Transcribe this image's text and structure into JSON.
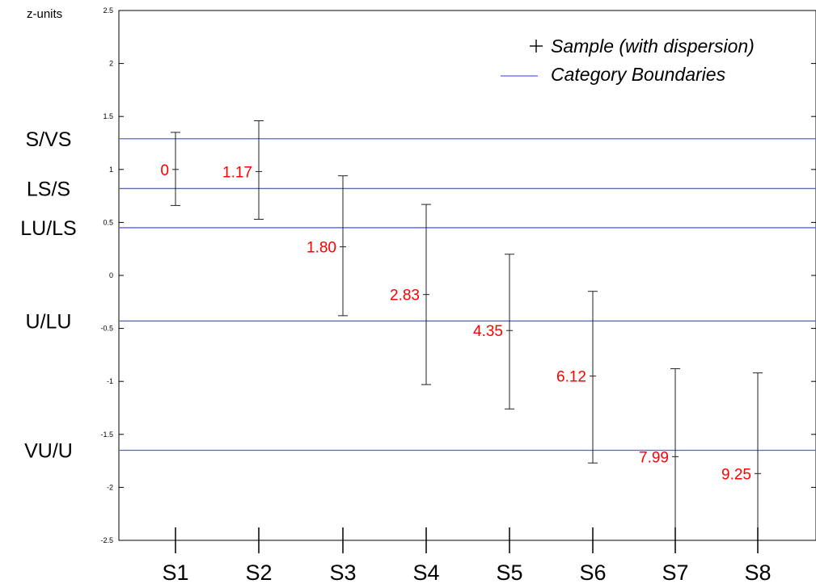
{
  "chart_data": {
    "type": "errorbar",
    "ylabel": "z-units",
    "ylim": [
      -2.5,
      2.5
    ],
    "yticks": [
      {
        "value": 2.5,
        "label": "2.5"
      },
      {
        "value": 2,
        "label": "2"
      },
      {
        "value": 1.5,
        "label": "1.5"
      },
      {
        "value": 1,
        "label": "1"
      },
      {
        "value": 0.5,
        "label": "0.5"
      },
      {
        "value": 0,
        "label": "0"
      },
      {
        "value": -0.5,
        "label": "-0.5"
      },
      {
        "value": -1,
        "label": "-1"
      },
      {
        "value": -1.5,
        "label": "-1.5"
      },
      {
        "value": -2,
        "label": "-2"
      },
      {
        "value": -2.5,
        "label": "-2.5"
      }
    ],
    "categories": [
      "S1",
      "S2",
      "S3",
      "S4",
      "S5",
      "S6",
      "S7",
      "S8"
    ],
    "samples": [
      {
        "name": "S1",
        "mean": 1.0,
        "lower": 0.66,
        "upper": 1.35,
        "label": "0"
      },
      {
        "name": "S2",
        "mean": 0.98,
        "lower": 0.53,
        "upper": 1.46,
        "label": "1.17"
      },
      {
        "name": "S3",
        "mean": 0.27,
        "lower": -0.38,
        "upper": 0.94,
        "label": "1.80"
      },
      {
        "name": "S4",
        "mean": -0.18,
        "lower": -1.03,
        "upper": 0.67,
        "label": "2.83"
      },
      {
        "name": "S5",
        "mean": -0.52,
        "lower": -1.26,
        "upper": 0.2,
        "label": "4.35"
      },
      {
        "name": "S6",
        "mean": -0.95,
        "lower": -1.77,
        "upper": -0.15,
        "label": "6.12"
      },
      {
        "name": "S7",
        "mean": -1.71,
        "lower": -2.5,
        "upper": -0.88,
        "label": "7.99"
      },
      {
        "name": "S8",
        "mean": -1.87,
        "lower": -2.5,
        "upper": -0.92,
        "label": "9.25"
      }
    ],
    "boundaries": [
      {
        "name": "S/VS",
        "value": 1.29
      },
      {
        "name": "LS/S",
        "value": 0.82
      },
      {
        "name": "LU/LS",
        "value": 0.45
      },
      {
        "name": "U/LU",
        "value": -0.43
      },
      {
        "name": "VU/U",
        "value": -1.65
      }
    ],
    "legend": {
      "position": "top-right",
      "entries": [
        {
          "symbol": "+",
          "label": "Sample (with dispersion)"
        },
        {
          "symbol": "line",
          "label": "Category Boundaries"
        }
      ]
    },
    "colors": {
      "boundary": "#5a5aff",
      "errorbar": "#222222",
      "value_label": "#ff0000",
      "axis": "#000000"
    }
  }
}
